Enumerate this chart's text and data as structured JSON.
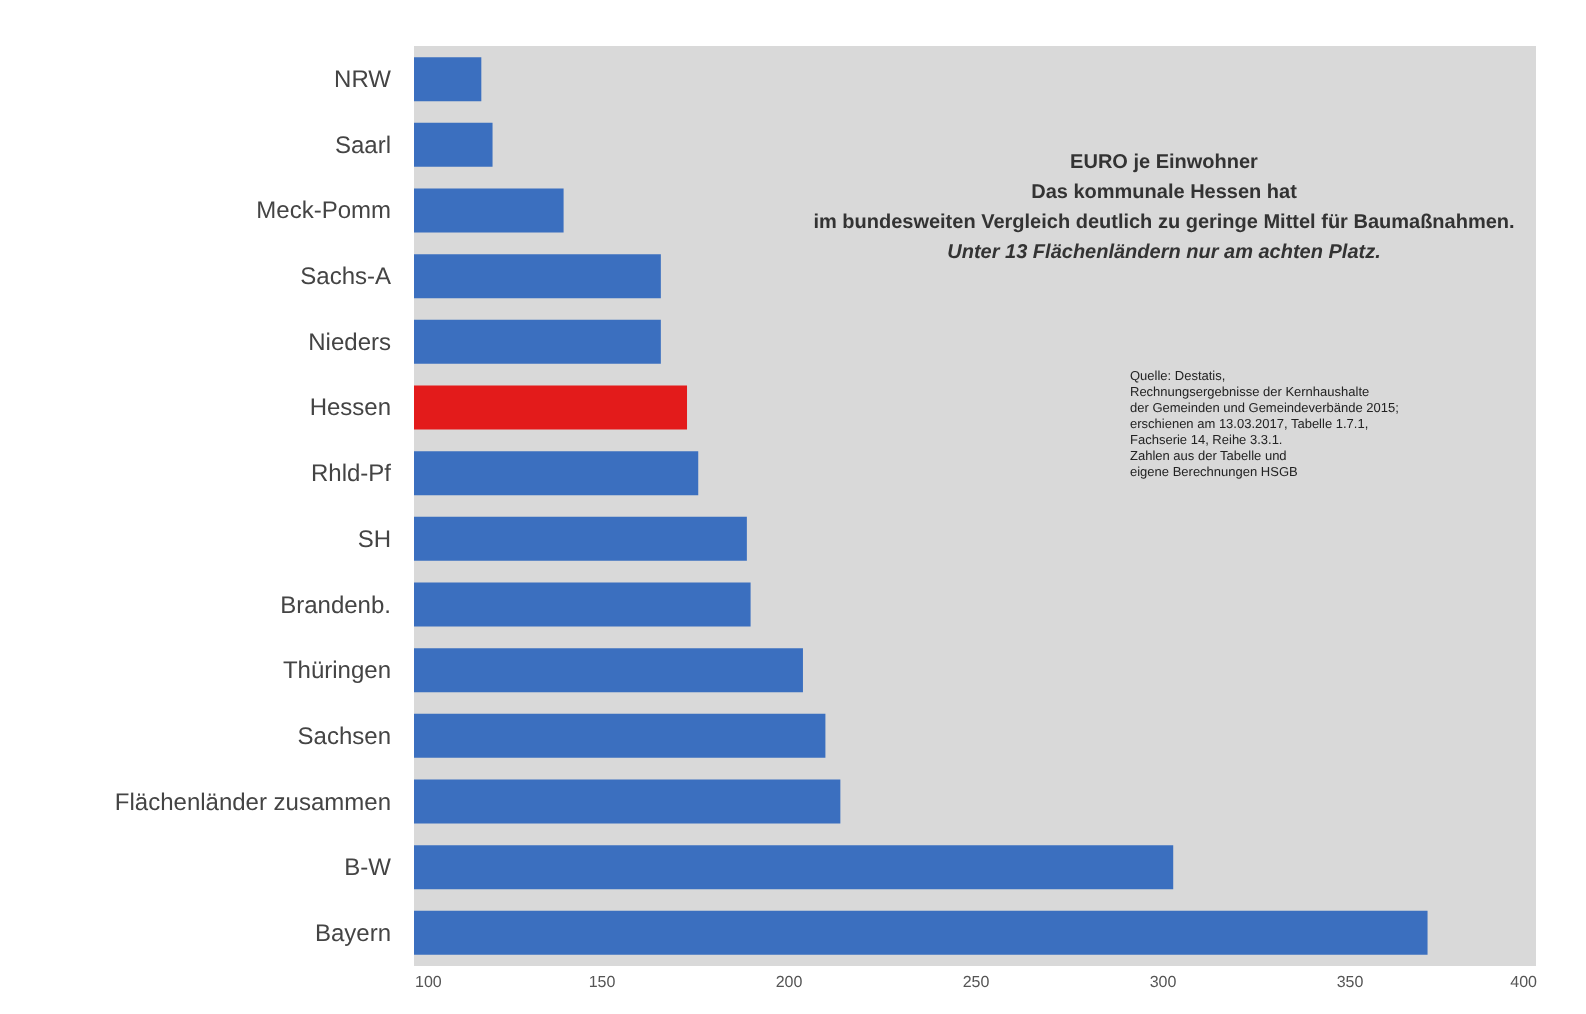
{
  "chart_data": {
    "type": "bar",
    "orientation": "horizontal",
    "title": "EURO je Einwohner",
    "subtitle": "Das kommunale Hessen hat",
    "annotations": [
      "im bundesweiten Vergleich deutlich zu geringe Mittel für Baumaßnahmen.",
      "Unter 13 Flächenländern nur am achten Platz.",
      "Quelle: Destatis,",
      "Rechnungsergebnisse der Kernhaushalte",
      "der Gemeinden und Gemeindeverbände 2015;",
      "erschienen am 13.03.2017, Tabelle 1.7.1,",
      "Fachserie 14, Reihe 3.3.1.",
      "Zahlen aus der Tabelle und",
      "eigene Berechnungen HSGB"
    ],
    "categories": [
      "NRW",
      "Saarl",
      "Meck-Pomm",
      "Sachs-A",
      "Nieders",
      "Hessen",
      "Rhld-Pf",
      "SH",
      "Brandenb.",
      "Thüringen",
      "Sachsen",
      "Flächenländer zusammen",
      "B-W",
      "Bayern"
    ],
    "values": [
      118,
      121,
      140,
      166,
      166,
      173,
      176,
      189,
      190,
      204,
      210,
      214,
      303,
      371
    ],
    "colors": [
      "#3b6fbf",
      "#3b6fbf",
      "#3b6fbf",
      "#3b6fbf",
      "#3b6fbf",
      "#e31b1b",
      "#3b6fbf",
      "#3b6fbf",
      "#3b6fbf",
      "#3b6fbf",
      "#3b6fbf",
      "#3b6fbf",
      "#3b6fbf",
      "#3b6fbf"
    ],
    "xlim": [
      100,
      400
    ],
    "xticks": [
      100,
      150,
      200,
      250,
      300,
      350,
      400
    ],
    "grid": false
  }
}
